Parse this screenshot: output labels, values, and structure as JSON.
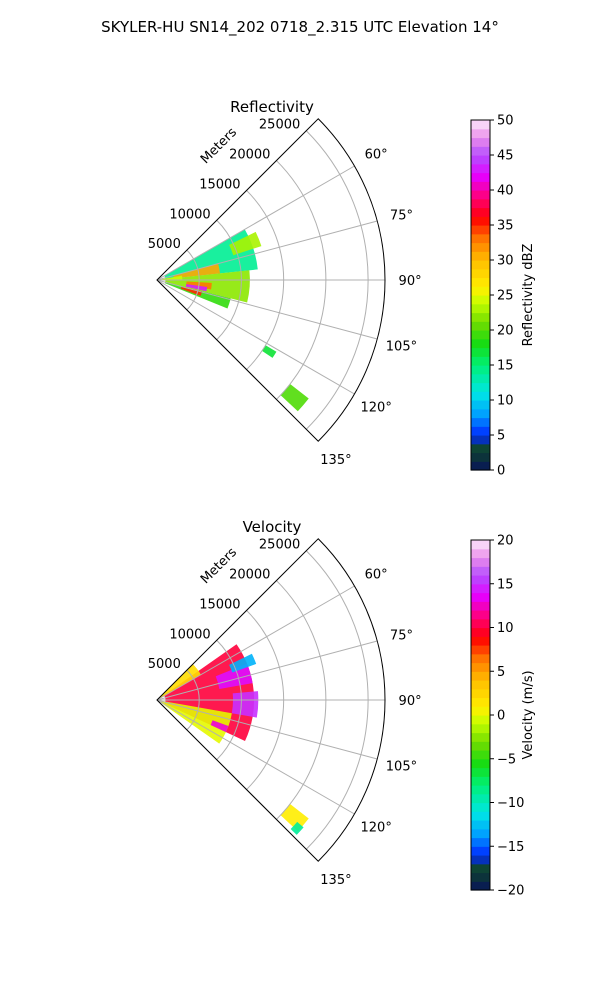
{
  "figure": {
    "title": "SKYLER-HU  SN14_202  0718_2.315 UTC Elevation 14°"
  },
  "chart_data": [
    {
      "type": "polar-sector",
      "title": "Reflectivity",
      "range_label": "Meters",
      "range_ticks": [
        "5000",
        "10000",
        "15000",
        "20000",
        "25000"
      ],
      "range_values": [
        5000,
        10000,
        15000,
        20000,
        25000
      ],
      "rmax": 27000,
      "azimuth_ticks": [
        "60°",
        "75°",
        "90°",
        "105°",
        "120°",
        "135°"
      ],
      "azimuth_values": [
        60,
        75,
        90,
        105,
        120,
        135
      ],
      "azimuth_range": [
        45,
        135
      ],
      "grid": true,
      "colorbar": {
        "label": "Reflectivity dBZ",
        "min": 0,
        "max": 50,
        "ticks": [
          0,
          5,
          10,
          15,
          20,
          25,
          30,
          35,
          40,
          45,
          50
        ],
        "tick_labels": [
          "0",
          "5",
          "10",
          "15",
          "20",
          "25",
          "30",
          "35",
          "40",
          "45",
          "50"
        ]
      },
      "echo_regions": [
        {
          "az": [
            60,
            84
          ],
          "range": [
            1000,
            12000
          ],
          "value": 14
        },
        {
          "az": [
            84,
            104
          ],
          "range": [
            1000,
            11000
          ],
          "value": 22
        },
        {
          "az": [
            104,
            112
          ],
          "range": [
            1000,
            9000
          ],
          "value": 19
        },
        {
          "az": [
            64,
            72
          ],
          "range": [
            9500,
            13000
          ],
          "value": 23
        },
        {
          "az": [
            75,
            84
          ],
          "range": [
            2000,
            7500
          ],
          "value": 31
        },
        {
          "az": [
            93,
            100
          ],
          "range": [
            3500,
            6500
          ],
          "value": 33
        },
        {
          "az": [
            98,
            103
          ],
          "range": [
            3500,
            6000
          ],
          "value": 43
        },
        {
          "az": [
            104,
            110
          ],
          "range": [
            3000,
            5500
          ],
          "value": 35
        },
        {
          "az": [
            80,
            90
          ],
          "range": [
            500,
            3000
          ],
          "value": 24
        },
        {
          "az": [
            128,
            133
          ],
          "range": [
            20000,
            22800
          ],
          "value": 20
        },
        {
          "az": [
            121,
            124
          ],
          "range": [
            15000,
            16500
          ],
          "value": 17
        }
      ]
    },
    {
      "type": "polar-sector",
      "title": "Velocity",
      "range_label": "Meters",
      "range_ticks": [
        "5000",
        "10000",
        "15000",
        "20000",
        "25000"
      ],
      "range_values": [
        5000,
        10000,
        15000,
        20000,
        25000
      ],
      "rmax": 27000,
      "azimuth_ticks": [
        "60°",
        "75°",
        "90°",
        "105°",
        "120°",
        "135°"
      ],
      "azimuth_values": [
        60,
        75,
        90,
        105,
        120,
        135
      ],
      "azimuth_range": [
        45,
        135
      ],
      "grid": true,
      "colorbar": {
        "label": "Velocity (m/s)",
        "min": -20,
        "max": 20,
        "ticks": [
          -20,
          -15,
          -10,
          -5,
          0,
          5,
          10,
          15,
          20
        ],
        "tick_labels": [
          "−20",
          "−15",
          "−10",
          "−5",
          "0",
          "5",
          "10",
          "15",
          "20"
        ]
      },
      "echo_regions": [
        {
          "az": [
            55,
            115
          ],
          "range": [
            1000,
            11500
          ],
          "value": 10
        },
        {
          "az": [
            45,
            60
          ],
          "range": [
            500,
            6000
          ],
          "value": 2
        },
        {
          "az": [
            100,
            125
          ],
          "range": [
            500,
            9000
          ],
          "value": 0
        },
        {
          "az": [
            68,
            80
          ],
          "range": [
            7500,
            11500
          ],
          "value": 14
        },
        {
          "az": [
            85,
            100
          ],
          "range": [
            9000,
            12000
          ],
          "value": 15
        },
        {
          "az": [
            64,
            70
          ],
          "range": [
            9500,
            12500
          ],
          "value": -13
        },
        {
          "az": [
            110,
            115
          ],
          "range": [
            7000,
            9000
          ],
          "value": 13
        },
        {
          "az": [
            128,
            133
          ],
          "range": [
            20000,
            22800
          ],
          "value": 1
        },
        {
          "az": [
            131,
            134
          ],
          "range": [
            22000,
            23000
          ],
          "value": -9
        }
      ]
    }
  ],
  "colors": {
    "grid": "#b0b0b0",
    "frame": "#000000"
  }
}
